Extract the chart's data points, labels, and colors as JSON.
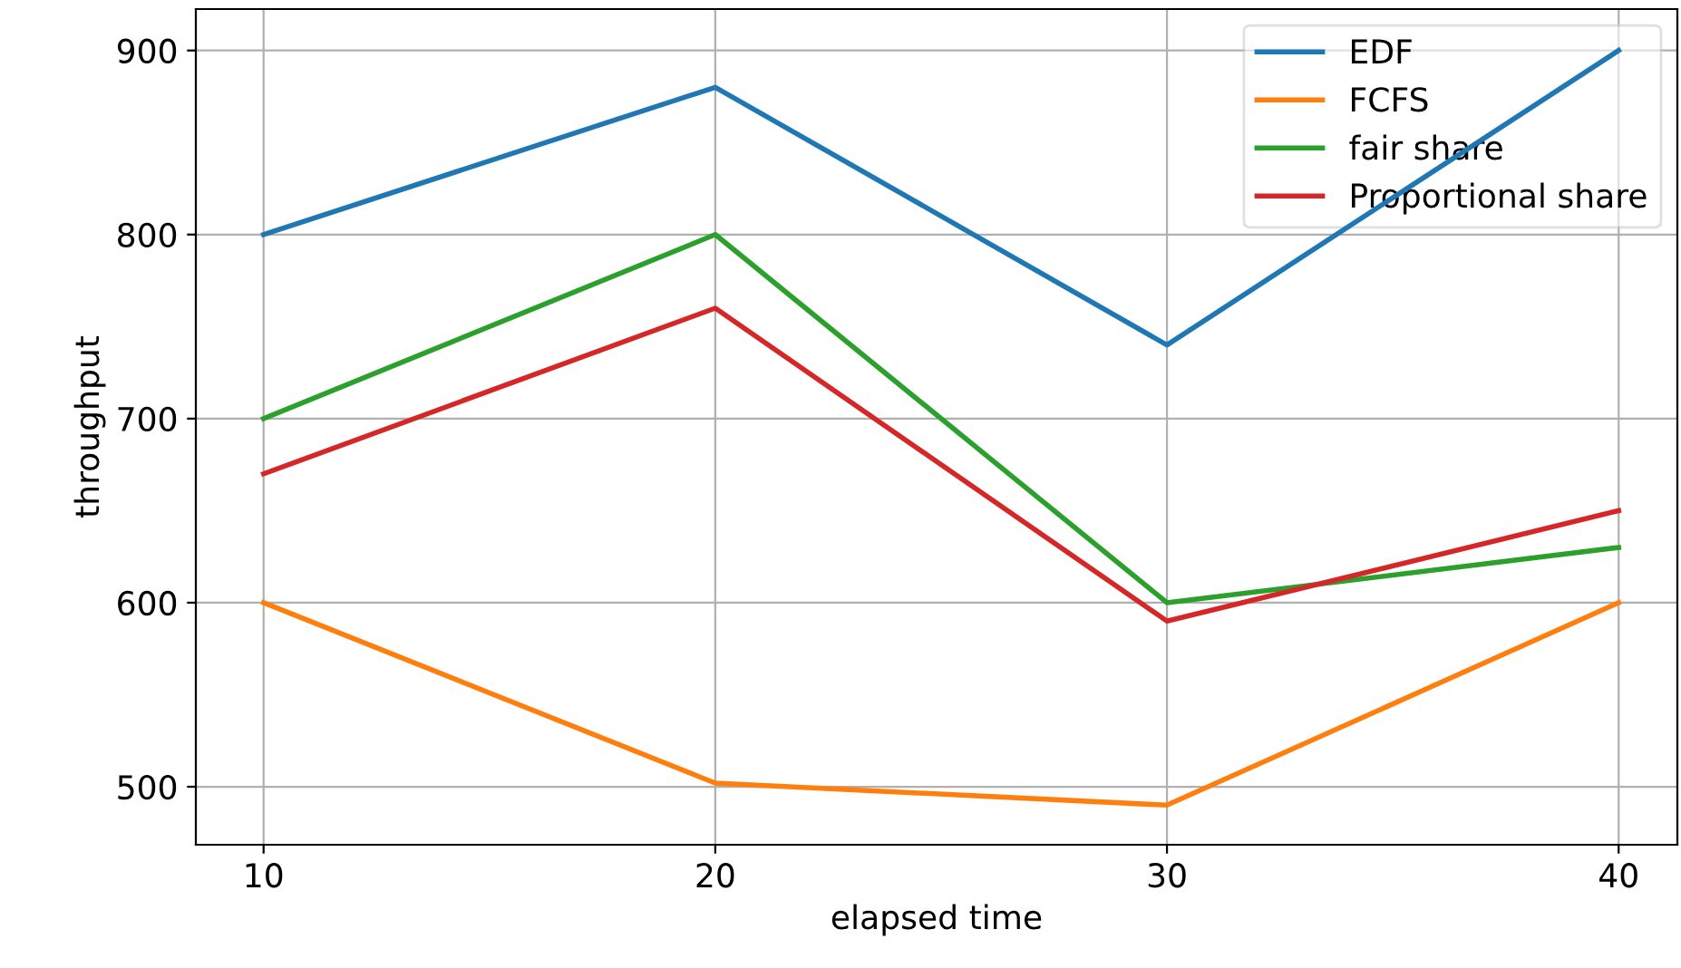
{
  "chart_data": {
    "type": "line",
    "xlabel": "elapsed time",
    "ylabel": "throughput",
    "x": [
      10,
      20,
      30,
      40
    ],
    "series": [
      {
        "name": "EDF",
        "color": "#1f77b4",
        "values": [
          800,
          880,
          740,
          900
        ]
      },
      {
        "name": "FCFS",
        "color": "#ff7f0e",
        "values": [
          600,
          502,
          490,
          600
        ]
      },
      {
        "name": "fair share",
        "color": "#2ca02c",
        "values": [
          700,
          800,
          600,
          630
        ]
      },
      {
        "name": "Proportional share",
        "color": "#d62728",
        "values": [
          670,
          760,
          590,
          650
        ]
      }
    ],
    "xlim": [
      8.5,
      41.3
    ],
    "ylim": [
      468.5,
      922.5
    ],
    "xticks": [
      10,
      20,
      30,
      40
    ],
    "yticks": [
      500,
      600,
      700,
      800,
      900
    ],
    "grid": true,
    "legend": "top right",
    "marker": "none",
    "line_style": "solid"
  }
}
